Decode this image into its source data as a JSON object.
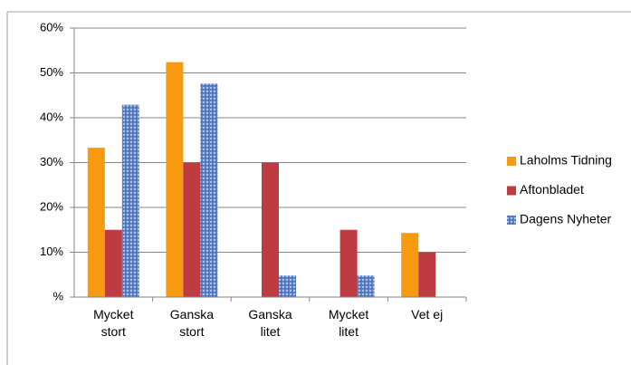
{
  "chart_data": {
    "type": "bar",
    "categories": [
      "Mycket stort",
      "Ganska stort",
      "Ganska litet",
      "Mycket litet",
      "Vet ej"
    ],
    "series": [
      {
        "name": "Laholms Tidning",
        "color": "#f79a10",
        "values": [
          33.3,
          52.4,
          0,
          0,
          14.3
        ]
      },
      {
        "name": "Aftonbladet",
        "color": "#be3b42",
        "values": [
          15,
          30,
          30,
          15,
          10
        ]
      },
      {
        "name": "Dagens Nyheter",
        "color": "#5b82c8",
        "values": [
          42.9,
          47.6,
          4.8,
          4.8,
          0
        ]
      }
    ],
    "ylim": [
      0,
      60
    ],
    "yticks": [
      {
        "value": 0,
        "label": "%"
      },
      {
        "value": 10,
        "label": "10%"
      },
      {
        "value": 20,
        "label": "20%"
      },
      {
        "value": 30,
        "label": "30%"
      },
      {
        "value": 40,
        "label": "40%"
      },
      {
        "value": 50,
        "label": "50%"
      },
      {
        "value": 60,
        "label": "60%"
      }
    ],
    "grid": true,
    "legend": "right"
  }
}
